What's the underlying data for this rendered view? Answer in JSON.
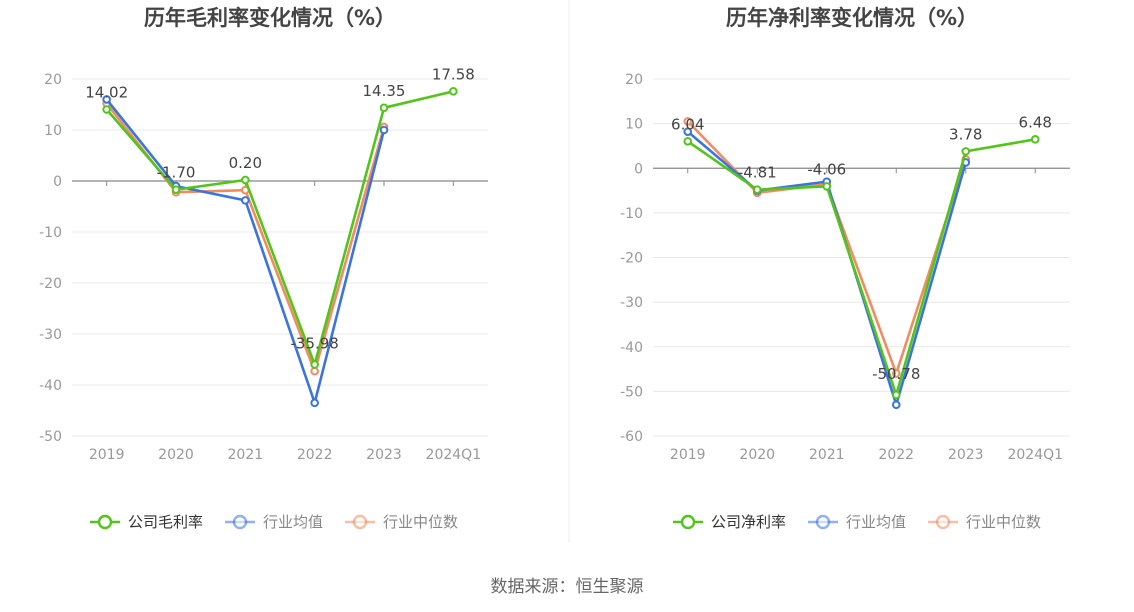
{
  "source_text": "数据来源：恒生聚源",
  "colors": {
    "company": "#52c41a",
    "industry_avg": "#3b73e0",
    "industry_median": "#f08c62",
    "axis_text": "#999999",
    "title": "#444444",
    "grid": "#e8e8e8",
    "zero_line": "#888888",
    "label": "#444444"
  },
  "chart_data": [
    {
      "type": "line",
      "title": "历年毛利率变化情况（%）",
      "categories": [
        "2019",
        "2020",
        "2021",
        "2022",
        "2023",
        "2024Q1"
      ],
      "ylim": [
        -50,
        20
      ],
      "yticks": [
        20,
        10,
        0,
        -10,
        -20,
        -30,
        -40,
        -50
      ],
      "grid": true,
      "legend": "bottom-center",
      "series": [
        {
          "name": "公司毛利率",
          "key": "company",
          "values": [
            14.02,
            -1.7,
            0.2,
            -35.98,
            14.35,
            17.58
          ],
          "labels": [
            "14.02",
            "-1.70",
            "0.20",
            "-35.98",
            "14.35",
            "17.58"
          ]
        },
        {
          "name": "行业均值",
          "key": "industry_avg",
          "values": [
            16.0,
            -1.0,
            -3.8,
            -43.5,
            10.0,
            null
          ]
        },
        {
          "name": "行业中位数",
          "key": "industry_median",
          "values": [
            15.2,
            -2.2,
            -1.8,
            -37.3,
            10.6,
            null
          ]
        }
      ]
    },
    {
      "type": "line",
      "title": "历年净利率变化情况（%）",
      "categories": [
        "2019",
        "2020",
        "2021",
        "2022",
        "2023",
        "2024Q1"
      ],
      "ylim": [
        -60,
        20
      ],
      "yticks": [
        20,
        10,
        0,
        -10,
        -20,
        -30,
        -40,
        -50,
        -60
      ],
      "grid": true,
      "legend": "bottom-center",
      "series": [
        {
          "name": "公司净利率",
          "key": "company",
          "values": [
            6.04,
            -4.81,
            -4.06,
            -50.78,
            3.78,
            6.48
          ],
          "labels": [
            "6.04",
            "-4.81",
            "-4.06",
            "-50.78",
            "3.78",
            "6.48"
          ]
        },
        {
          "name": "行业均值",
          "key": "industry_avg",
          "values": [
            8.2,
            -5.0,
            -3.0,
            -53.0,
            1.3,
            null
          ]
        },
        {
          "name": "行业中位数",
          "key": "industry_median",
          "values": [
            10.5,
            -5.5,
            -3.6,
            -46.0,
            2.0,
            null
          ]
        }
      ]
    }
  ]
}
